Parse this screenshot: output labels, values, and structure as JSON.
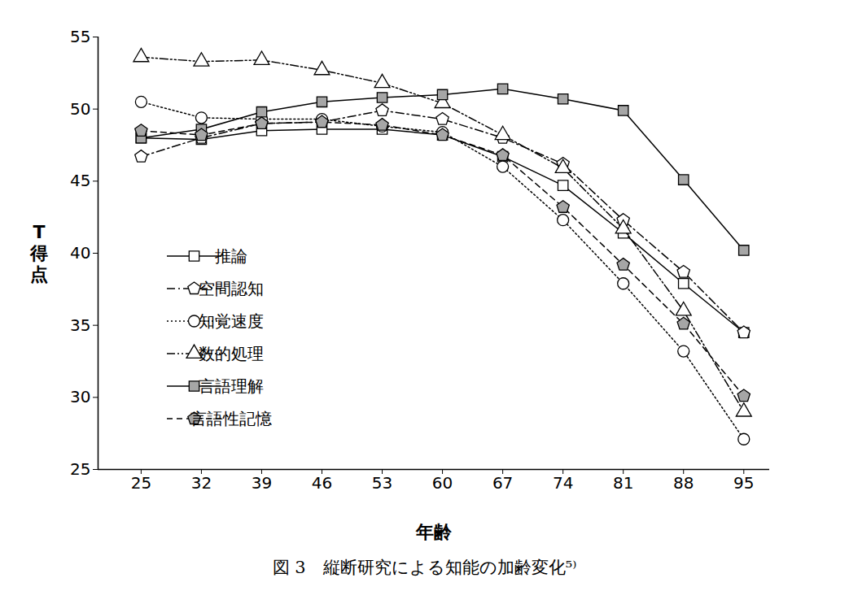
{
  "chart_data": {
    "type": "line",
    "title": "図 3　縦断研究による知能の加齢変化⁵⁾",
    "x_label": "年齢",
    "y_label": "T得点",
    "x": [
      25,
      32,
      39,
      46,
      53,
      60,
      67,
      74,
      81,
      88,
      95
    ],
    "xlim": [
      20,
      98
    ],
    "xticks": [
      25,
      32,
      39,
      46,
      53,
      60,
      67,
      74,
      81,
      88,
      95
    ],
    "ylim": [
      25,
      55
    ],
    "yticks": [
      25,
      30,
      35,
      40,
      45,
      50,
      55
    ],
    "grid": false,
    "legend": "left",
    "series": [
      {
        "name": "推論",
        "color": "#ffffff",
        "marker": "square",
        "line_style": "solid",
        "values": [
          48.0,
          47.9,
          48.5,
          48.6,
          48.6,
          48.2,
          46.7,
          44.7,
          41.4,
          37.9,
          34.5
        ]
      },
      {
        "name": "空間認知",
        "color": "#ffffff",
        "marker": "pentagon",
        "line_style": "dashdot",
        "values": [
          46.7,
          48.0,
          49.0,
          49.1,
          49.9,
          49.3,
          48.0,
          46.2,
          42.3,
          38.7,
          34.5
        ]
      },
      {
        "name": "知覚速度",
        "color": "#ffffff",
        "marker": "circle",
        "line_style": "dotted",
        "values": [
          50.5,
          49.4,
          49.3,
          49.3,
          48.8,
          48.4,
          46.0,
          42.3,
          37.9,
          33.2,
          27.1
        ]
      },
      {
        "name": "数的処理",
        "color": "#ffffff",
        "marker": "triangle",
        "line_style": "dashdotdot",
        "values": [
          53.6,
          53.3,
          53.4,
          52.7,
          51.8,
          50.4,
          48.2,
          45.9,
          41.7,
          36.0,
          29.0
        ]
      },
      {
        "name": "言語理解",
        "color": "#a6a6a6",
        "marker": "square",
        "line_style": "solid",
        "values": [
          48.0,
          48.6,
          49.8,
          50.5,
          50.8,
          51.0,
          51.4,
          50.7,
          49.9,
          45.1,
          40.2
        ]
      },
      {
        "name": "言語性記憶",
        "color": "#a6a6a6",
        "marker": "pentagon",
        "line_style": "dashed",
        "values": [
          48.5,
          48.2,
          49.0,
          49.1,
          48.9,
          48.2,
          46.8,
          43.2,
          39.2,
          35.1,
          30.1
        ]
      }
    ]
  }
}
